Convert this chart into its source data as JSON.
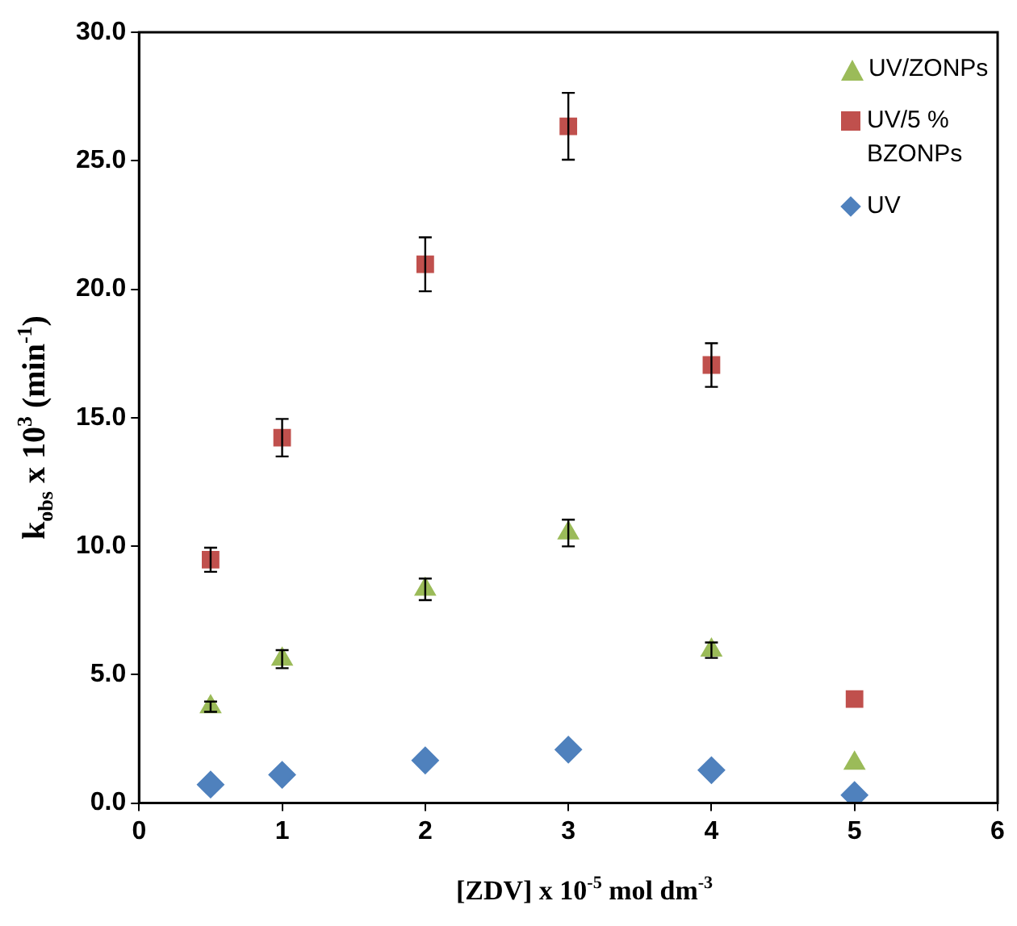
{
  "chart_data": {
    "type": "scatter",
    "xlabel": "[ZDV] x 10$^{-5}$ mol dm$^{-3}$",
    "ylabel": "k$_{obs}$ x 10$^{3}$ (min$^{-1}$)",
    "x": [
      0.5,
      1,
      2,
      3,
      4,
      5
    ],
    "series": [
      {
        "name": "UV/ZONPs",
        "color": "#9bbb59",
        "marker": "triangle",
        "values": [
          3.75,
          5.6,
          8.32,
          10.51,
          5.95,
          1.55
        ],
        "errors": [
          0.2,
          0.35,
          0.42,
          0.52,
          0.3,
          null
        ]
      },
      {
        "name": "UV/5 % BZONPs",
        "color": "#c0504d",
        "marker": "square",
        "values": [
          9.47,
          14.22,
          20.97,
          26.34,
          17.05,
          4.05
        ],
        "errors": [
          0.47,
          0.73,
          1.05,
          1.3,
          0.85,
          null
        ]
      },
      {
        "name": "UV",
        "color": "#4f81bd",
        "marker": "diamond",
        "values": [
          0.72,
          1.1,
          1.66,
          2.08,
          1.28,
          0.31
        ]
      }
    ],
    "xlim": [
      0,
      6
    ],
    "xticks": [
      0,
      1,
      2,
      3,
      4,
      5,
      6
    ],
    "ylim": [
      0,
      30
    ],
    "yticks": [
      {
        "value": 0,
        "label": "0.0"
      },
      {
        "value": 5,
        "label": "5.0"
      },
      {
        "value": 10,
        "label": "10.0"
      },
      {
        "value": 15,
        "label": "15.0"
      },
      {
        "value": 20,
        "label": "20.0"
      },
      {
        "value": 25,
        "label": "25.0"
      },
      {
        "value": 30,
        "label": "30.0"
      }
    ],
    "grid": false,
    "legend": "top right"
  }
}
